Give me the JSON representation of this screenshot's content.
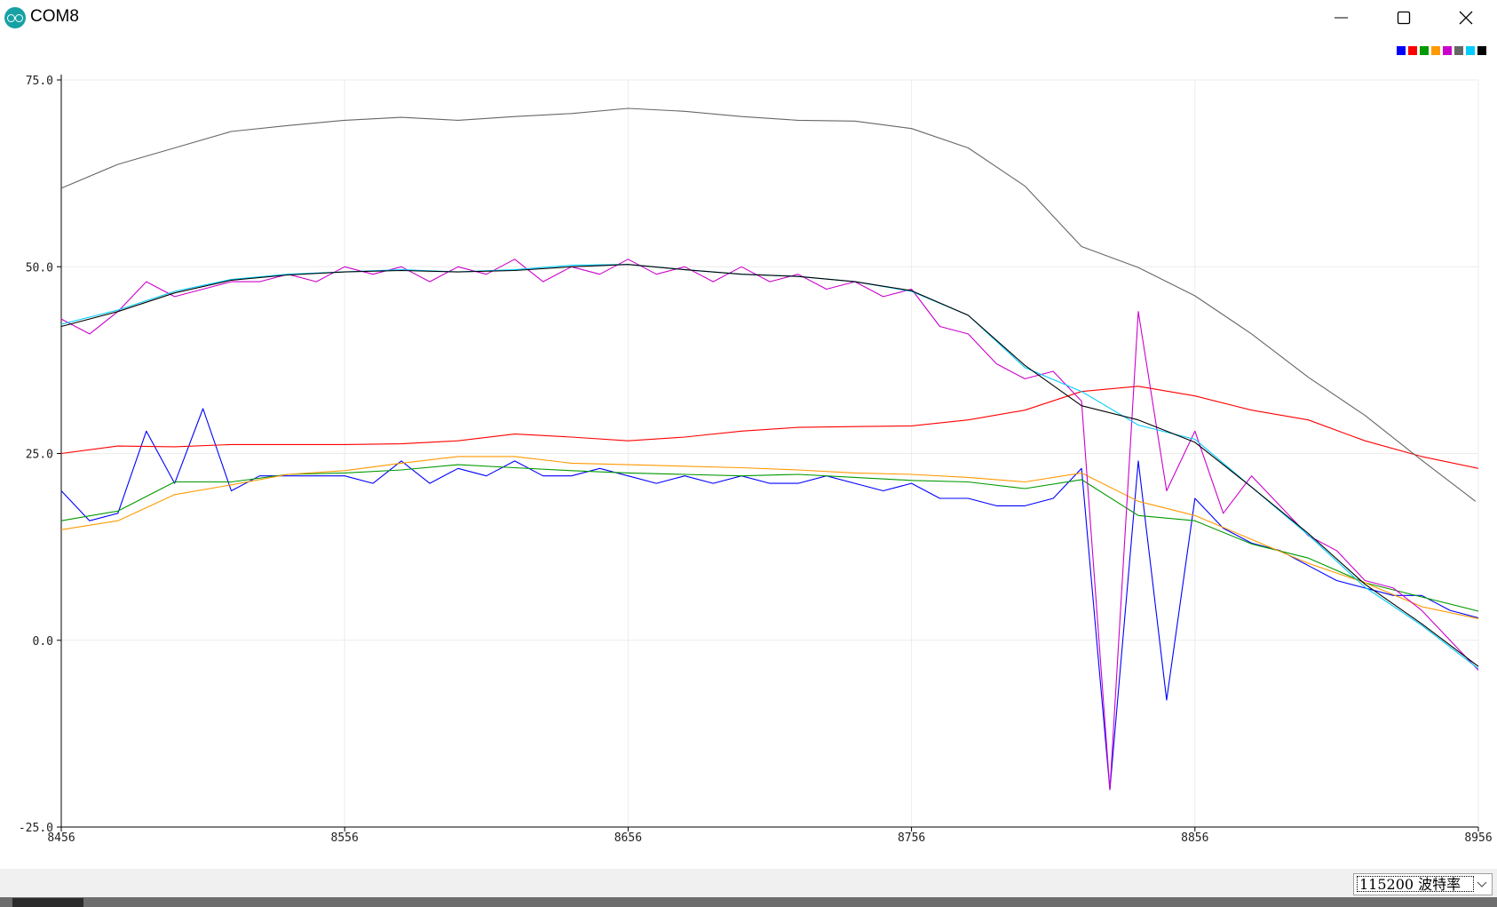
{
  "window": {
    "title": "COM8",
    "icon": "arduino-icon",
    "controls": [
      "minimize-icon",
      "maximize-icon",
      "close-icon"
    ]
  },
  "footer": {
    "baud_select": "115200  波特率"
  },
  "chart_data": {
    "type": "line",
    "title": "",
    "xlabel": "",
    "ylabel": "",
    "xlim": [
      8456,
      8956
    ],
    "ylim": [
      -25,
      75
    ],
    "x_ticks": [
      "8456",
      "8556",
      "8656",
      "8756",
      "8856",
      "8956"
    ],
    "y_ticks": [
      "75.0",
      "50.0",
      "25.0",
      "0.0",
      "-25.0"
    ],
    "grid": true,
    "legend": "top-right",
    "series": [
      {
        "color": "#0000ff",
        "x": [
          8456,
          8466,
          8476,
          8486,
          8496,
          8506,
          8516,
          8526,
          8536,
          8546,
          8556,
          8566,
          8576,
          8586,
          8596,
          8606,
          8616,
          8626,
          8636,
          8646,
          8656,
          8666,
          8676,
          8686,
          8696,
          8706,
          8716,
          8726,
          8736,
          8746,
          8756,
          8766,
          8776,
          8786,
          8796,
          8806,
          8816,
          8826,
          8836,
          8846,
          8856,
          8866,
          8876,
          8886,
          8896,
          8906,
          8916,
          8926,
          8936,
          8946,
          8956
        ],
        "y": [
          20,
          16,
          17,
          28,
          21,
          31,
          20,
          22,
          22,
          22,
          22,
          21,
          24,
          21,
          23,
          22,
          24,
          22,
          22,
          23,
          22,
          21,
          22,
          21,
          22,
          21,
          21,
          22,
          21,
          20,
          21,
          19,
          19,
          18,
          18,
          19,
          23,
          -20,
          24,
          -8,
          19,
          15,
          13,
          12,
          10,
          8,
          7,
          6,
          6,
          4,
          3
        ]
      },
      {
        "color": "#ff0000",
        "x": [
          8456,
          8476,
          8496,
          8516,
          8536,
          8556,
          8576,
          8596,
          8616,
          8636,
          8656,
          8676,
          8696,
          8716,
          8736,
          8756,
          8776,
          8796,
          8816,
          8836,
          8856,
          8876,
          8896,
          8916,
          8936,
          8956
        ],
        "y": [
          25,
          26,
          25.9,
          26.2,
          26.2,
          26.2,
          26.3,
          26.7,
          27.6,
          27.2,
          26.7,
          27.2,
          28,
          28.5,
          28.6,
          28.7,
          29.5,
          30.8,
          33.3,
          34,
          32.7,
          30.8,
          29.5,
          26.7,
          24.6,
          23
        ]
      },
      {
        "color": "#009900",
        "x": [
          8456,
          8476,
          8496,
          8516,
          8536,
          8556,
          8576,
          8596,
          8616,
          8636,
          8656,
          8676,
          8696,
          8716,
          8736,
          8756,
          8776,
          8796,
          8816,
          8836,
          8856,
          8876,
          8896,
          8916,
          8936,
          8956
        ],
        "y": [
          16,
          17.3,
          21.2,
          21.2,
          22.2,
          22.4,
          22.8,
          23.5,
          23.1,
          22.7,
          22.4,
          22.2,
          22,
          22.2,
          21.8,
          21.4,
          21.2,
          20.3,
          21.5,
          16.7,
          16,
          12.9,
          11,
          7.7,
          5.8,
          3.9
        ]
      },
      {
        "color": "#ff9900",
        "x": [
          8456,
          8476,
          8496,
          8516,
          8536,
          8556,
          8576,
          8596,
          8616,
          8636,
          8656,
          8676,
          8696,
          8716,
          8736,
          8756,
          8776,
          8796,
          8816,
          8836,
          8856,
          8876,
          8896,
          8916,
          8936,
          8956
        ],
        "y": [
          14.8,
          16,
          19.5,
          20.8,
          22.2,
          22.7,
          23.7,
          24.6,
          24.6,
          23.7,
          23.5,
          23.3,
          23.1,
          22.8,
          22.4,
          22.2,
          21.8,
          21.2,
          22.4,
          18.6,
          16.7,
          13.5,
          10.3,
          7.7,
          4.5,
          2.9
        ]
      },
      {
        "color": "#cc00cc",
        "x": [
          8456,
          8466,
          8476,
          8486,
          8496,
          8506,
          8516,
          8526,
          8536,
          8546,
          8556,
          8566,
          8576,
          8586,
          8596,
          8606,
          8616,
          8626,
          8636,
          8646,
          8656,
          8666,
          8676,
          8686,
          8696,
          8706,
          8716,
          8726,
          8736,
          8746,
          8756,
          8766,
          8776,
          8786,
          8796,
          8806,
          8816,
          8826,
          8836,
          8846,
          8856,
          8866,
          8876,
          8886,
          8896,
          8906,
          8916,
          8926,
          8936,
          8946,
          8956
        ],
        "y": [
          43,
          41,
          44,
          48,
          46,
          47,
          48,
          48,
          49,
          48,
          50,
          49,
          50,
          48,
          50,
          49,
          51,
          48,
          50,
          49,
          51,
          49,
          50,
          48,
          50,
          48,
          49,
          47,
          48,
          46,
          47,
          42,
          41,
          37,
          35,
          36,
          32,
          -20,
          44,
          20,
          28,
          17,
          22,
          18,
          14,
          12,
          8,
          7,
          4,
          0,
          -4
        ]
      },
      {
        "color": "#666666",
        "x": [
          8456,
          8476,
          8496,
          8516,
          8536,
          8556,
          8576,
          8596,
          8616,
          8636,
          8656,
          8676,
          8696,
          8716,
          8736,
          8756,
          8776,
          8796,
          8816,
          8836,
          8856,
          8876,
          8896,
          8916,
          8936,
          8955
        ],
        "y": [
          60.5,
          63.7,
          65.9,
          68.1,
          68.9,
          69.6,
          70,
          69.6,
          70.1,
          70.5,
          71.2,
          70.8,
          70.1,
          69.6,
          69.5,
          68.5,
          65.9,
          60.8,
          52.7,
          49.9,
          46.1,
          41,
          35.2,
          30.1,
          24.1,
          18.6
        ]
      },
      {
        "color": "#00ccff",
        "x": [
          8456,
          8476,
          8496,
          8516,
          8536,
          8556,
          8576,
          8596,
          8616,
          8636,
          8656,
          8676,
          8696,
          8716,
          8736,
          8756,
          8776,
          8796,
          8816,
          8836,
          8856,
          8876,
          8896,
          8916,
          8936,
          8956
        ],
        "y": [
          42.3,
          44.2,
          46.7,
          48.3,
          49,
          49.3,
          49.6,
          49.3,
          49.6,
          50.2,
          50.3,
          49.6,
          49,
          48.7,
          48,
          46.7,
          43.5,
          36.5,
          33.3,
          28.8,
          26.9,
          20.5,
          14.1,
          7.1,
          2,
          -3.8
        ]
      },
      {
        "color": "#000000",
        "x": [
          8456,
          8476,
          8496,
          8516,
          8536,
          8556,
          8576,
          8596,
          8616,
          8636,
          8656,
          8676,
          8696,
          8716,
          8736,
          8756,
          8776,
          8796,
          8816,
          8836,
          8856,
          8876,
          8896,
          8916,
          8936,
          8956
        ],
        "y": [
          42,
          44,
          46.5,
          48.2,
          48.9,
          49.3,
          49.5,
          49.3,
          49.5,
          50,
          50.3,
          49.6,
          49,
          48.7,
          48,
          46.8,
          43.5,
          36.8,
          31.4,
          29.5,
          26.5,
          20.5,
          14.3,
          7.5,
          2.2,
          -3.5
        ]
      }
    ]
  }
}
